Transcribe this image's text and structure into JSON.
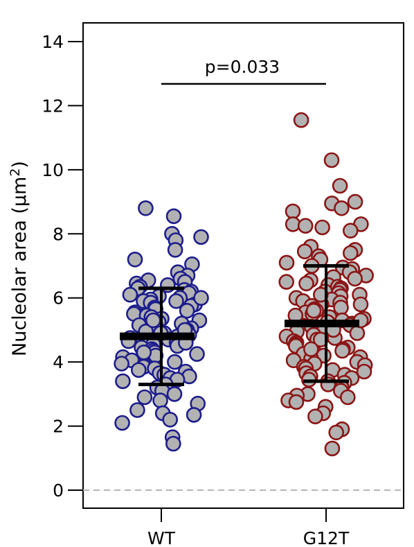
{
  "chart_data": {
    "type": "scatter",
    "subtype": "dot-plot-with-mean-sd",
    "ylabel_main": "Nucleolar area (µm",
    "ylabel_sup": "2",
    "ylabel_close": ")",
    "ylim": [
      0,
      14
    ],
    "yticks": [
      0,
      2,
      4,
      6,
      8,
      10,
      12,
      14
    ],
    "categories": [
      "WT",
      "G12T"
    ],
    "annotation": "p=0.033",
    "grid": false,
    "zero_line": "dashed",
    "series": [
      {
        "category": "WT",
        "marker_fill": "#b2b2b2",
        "marker_edge": "#1c1c8c",
        "mean": 4.8,
        "sd_low": 3.3,
        "sd_high": 6.3,
        "values": [
          8.55,
          8.8,
          8.0,
          7.9,
          7.8,
          7.5,
          7.2,
          7.05,
          6.8,
          6.7,
          6.6,
          6.55,
          6.5,
          6.45,
          6.4,
          6.35,
          6.3,
          6.25,
          6.2,
          6.15,
          6.1,
          6.05,
          6.0,
          5.95,
          5.9,
          5.85,
          5.8,
          5.75,
          5.7,
          5.65,
          5.6,
          5.55,
          5.5,
          5.45,
          5.4,
          5.35,
          5.3,
          5.25,
          5.2,
          5.15,
          5.1,
          5.05,
          5.0,
          4.95,
          4.9,
          4.85,
          4.8,
          4.75,
          4.7,
          4.65,
          4.6,
          4.55,
          4.5,
          4.45,
          4.4,
          4.35,
          4.3,
          4.25,
          4.2,
          4.15,
          4.1,
          4.05,
          4.0,
          3.95,
          3.9,
          3.85,
          3.8,
          3.75,
          3.7,
          3.65,
          3.6,
          3.55,
          3.5,
          3.45,
          3.4,
          3.3,
          3.2,
          3.1,
          3.0,
          2.9,
          2.8,
          2.7,
          2.5,
          2.4,
          2.35,
          2.2,
          2.1,
          1.65,
          1.45,
          5.3,
          4.6,
          5.9,
          4.3,
          5.0,
          6.0,
          4.9
        ]
      },
      {
        "category": "G12T",
        "marker_fill": "#b2b2b2",
        "marker_edge": "#8c1414",
        "mean": 5.2,
        "sd_low": 3.4,
        "sd_high": 7.0,
        "values": [
          11.55,
          10.3,
          9.5,
          9.0,
          8.95,
          8.8,
          8.7,
          8.3,
          8.3,
          8.25,
          8.2,
          8.1,
          7.6,
          7.5,
          7.45,
          7.4,
          7.3,
          7.2,
          7.1,
          7.0,
          6.95,
          6.9,
          6.8,
          6.7,
          6.65,
          6.6,
          6.55,
          6.5,
          6.45,
          6.4,
          6.35,
          6.3,
          6.25,
          6.2,
          6.15,
          6.1,
          6.05,
          6.0,
          5.95,
          5.9,
          5.85,
          5.8,
          5.75,
          5.7,
          5.65,
          5.6,
          5.55,
          5.5,
          5.45,
          5.4,
          5.35,
          5.3,
          5.25,
          5.2,
          5.15,
          5.1,
          5.05,
          5.0,
          4.95,
          4.9,
          4.85,
          4.8,
          4.75,
          4.7,
          4.65,
          4.6,
          4.55,
          4.5,
          4.45,
          4.4,
          4.35,
          4.3,
          4.25,
          4.2,
          4.15,
          4.1,
          4.05,
          4.0,
          3.95,
          3.9,
          3.85,
          3.8,
          3.75,
          3.7,
          3.65,
          3.6,
          3.55,
          3.5,
          3.45,
          3.4,
          3.35,
          3.3,
          3.2,
          3.1,
          3.0,
          2.95,
          2.9,
          2.8,
          2.75,
          2.6,
          2.4,
          2.3,
          1.9,
          1.8,
          1.3,
          5.6,
          4.7,
          6.1,
          5.0,
          4.4,
          5.3,
          5.8
        ]
      }
    ]
  }
}
